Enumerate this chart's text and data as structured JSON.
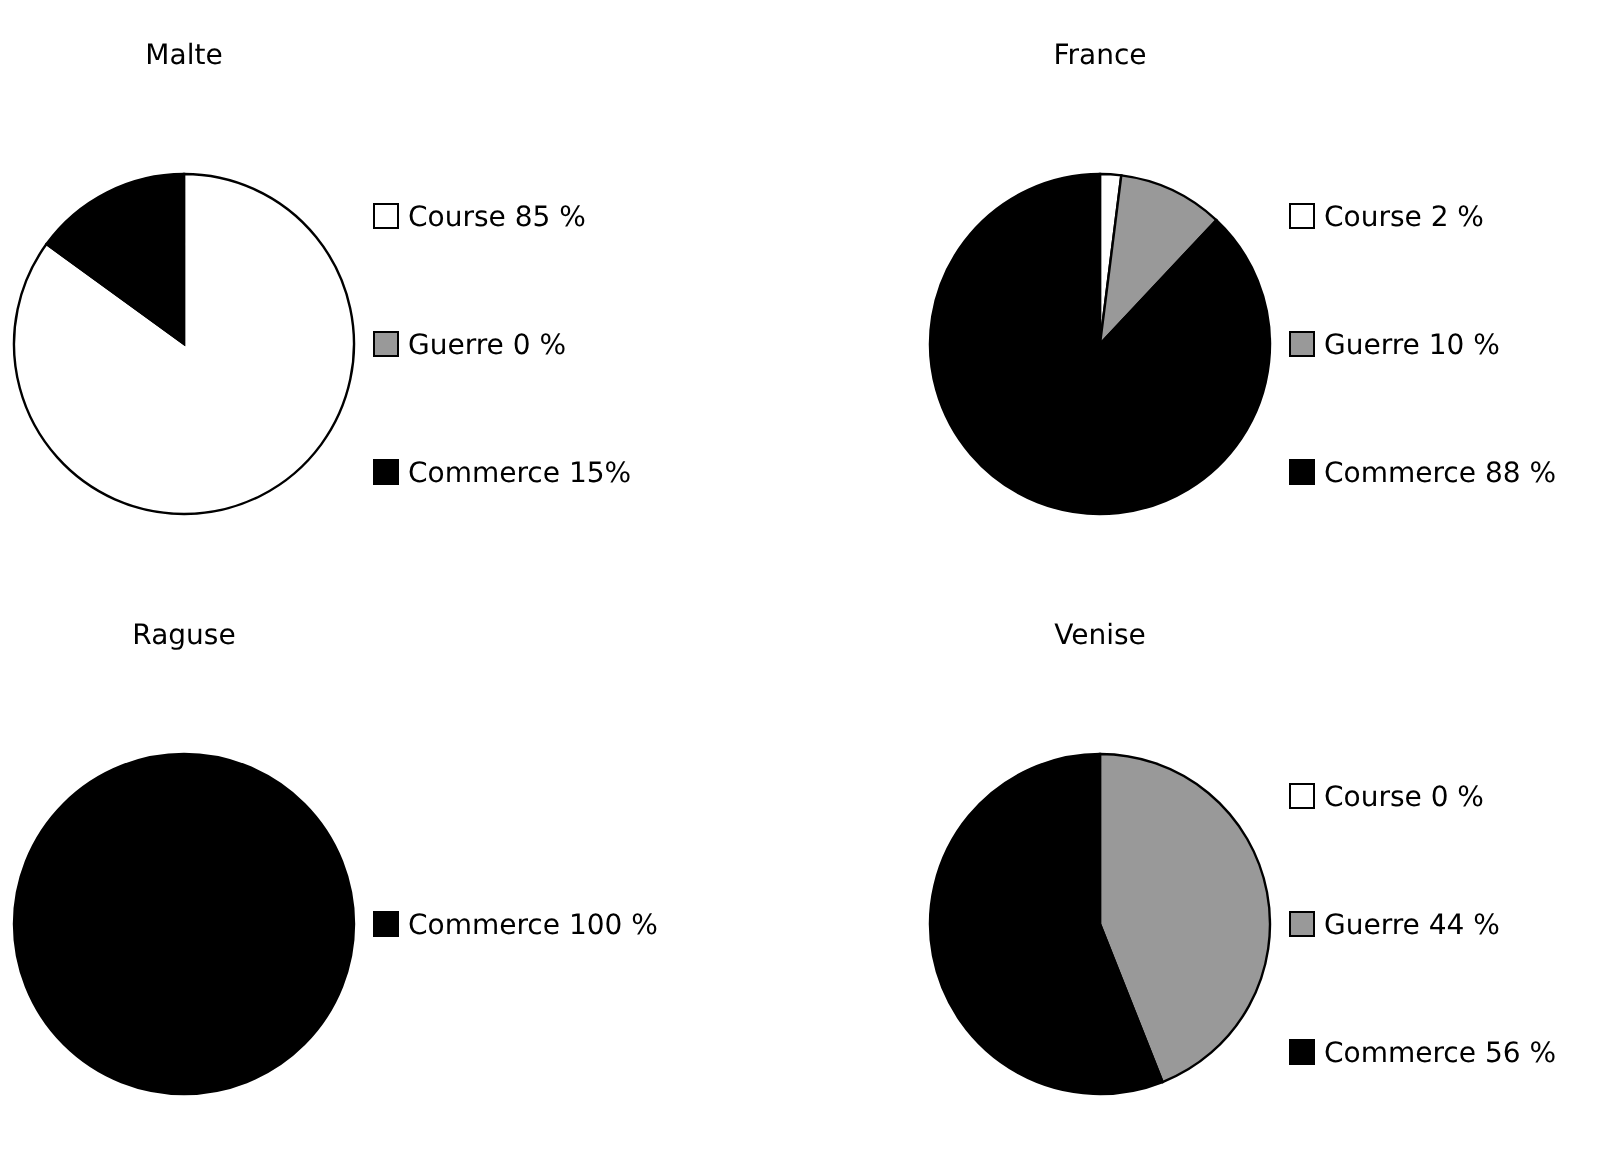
{
  "chart_data": [
    {
      "type": "pie",
      "title": "Malte",
      "categories": [
        "Course 85 %",
        "Guerre 0 %",
        "Commerce 15%"
      ],
      "values": [
        85,
        0,
        15
      ],
      "colors": [
        "#ffffff",
        "#999999",
        "#000000"
      ],
      "legend": "right"
    },
    {
      "type": "pie",
      "title": "France",
      "categories": [
        "Course 2 %",
        "Guerre 10 %",
        "Commerce 88 %"
      ],
      "values": [
        2,
        10,
        88
      ],
      "colors": [
        "#ffffff",
        "#999999",
        "#000000"
      ],
      "legend": "right"
    },
    {
      "type": "pie",
      "title": "Raguse",
      "categories": [
        "Commerce 100 %"
      ],
      "values": [
        100
      ],
      "colors": [
        "#000000"
      ],
      "legend": "right"
    },
    {
      "type": "pie",
      "title": "Venise",
      "categories": [
        "Course 0 %",
        "Guerre 44 %",
        "Commerce 56 %"
      ],
      "values": [
        0,
        44,
        56
      ],
      "colors": [
        "#ffffff",
        "#999999",
        "#000000"
      ],
      "legend": "right"
    }
  ]
}
